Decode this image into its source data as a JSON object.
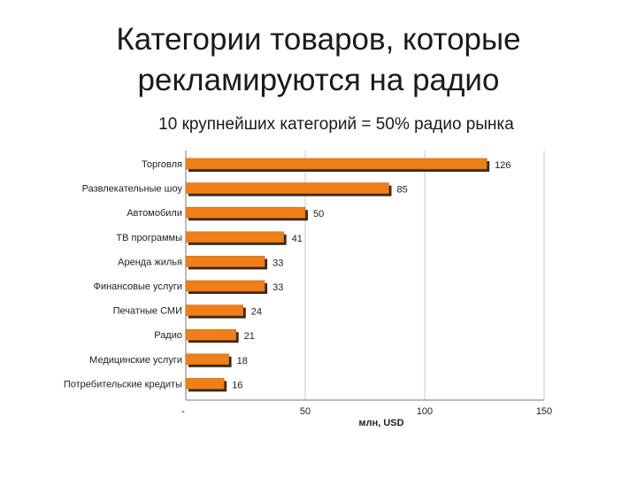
{
  "title_lines": [
    "Категории товаров, которые",
    "рекламируются на радио"
  ],
  "subtitle": "10 крупнейших категорий = 50% радио рынка",
  "chart_data": {
    "type": "bar",
    "orientation": "horizontal",
    "categories": [
      "Торговля",
      "Развлекательные шоу",
      "Автомобили",
      "ТВ программы",
      "Аренда жилья",
      "Финансовые услуги",
      "Печатные СМИ",
      "Радио",
      "Медицинские услуги",
      "Потребительские кредиты"
    ],
    "values": [
      126,
      85,
      50,
      41,
      33,
      33,
      24,
      21,
      18,
      16
    ],
    "x_ticks": [
      "-",
      "50",
      "100",
      "150"
    ],
    "xlim": [
      0,
      150
    ],
    "xlabel": "млн, USD",
    "grid": true,
    "bar_color": "#f07f1a",
    "bar_shadow_color": "#3a2a1a"
  }
}
